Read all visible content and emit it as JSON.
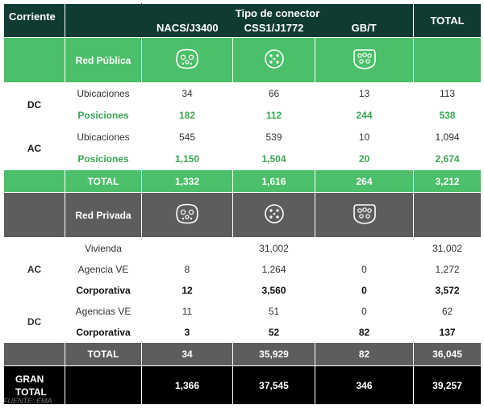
{
  "header": {
    "corriente": "Corriente",
    "tipo_conector": "Tipo de conector",
    "nacs": "NACS/J3400",
    "ccs1": "CSS1/J1772",
    "gbt": "GB/T",
    "total": "TOTAL"
  },
  "public": {
    "title": "Red Pública",
    "dc_label": "DC",
    "ac_label": "AC",
    "dc_ubic": {
      "label": "Ubicaciones",
      "nacs": "34",
      "ccs1": "66",
      "gbt": "13",
      "total": "113"
    },
    "dc_pos": {
      "label": "Posiciones",
      "nacs": "182",
      "ccs1": "112",
      "gbt": "244",
      "total": "538"
    },
    "ac_ubic": {
      "label": "Ubicaciones",
      "nacs": "545",
      "ccs1": "539",
      "gbt": "10",
      "total": "1,094"
    },
    "ac_pos": {
      "label": "Posiciones",
      "nacs": "1,150",
      "ccs1": "1,504",
      "gbt": "20",
      "total": "2,674"
    },
    "total": {
      "label": "TOTAL",
      "nacs": "1,332",
      "ccs1": "1,616",
      "gbt": "264",
      "total": "3,212"
    }
  },
  "private": {
    "title": "Red Privada",
    "ac_label": "AC",
    "dc_label": "DC",
    "vivienda": {
      "label": "Vivienda",
      "nacs": "",
      "ccs1": "31,002",
      "gbt": "",
      "total": "31,002"
    },
    "agencia_ve": {
      "label": "Agencia VE",
      "nacs": "8",
      "ccs1": "1,264",
      "gbt": "0",
      "total": "1,272"
    },
    "ac_corp": {
      "label": "Corporativa",
      "nacs": "12",
      "ccs1": "3,560",
      "gbt": "0",
      "total": "3,572"
    },
    "agencias_ve": {
      "label": "Agencias VE",
      "nacs": "11",
      "ccs1": "51",
      "gbt": "0",
      "total": "62"
    },
    "dc_corp": {
      "label": "Corporativa",
      "nacs": "3",
      "ccs1": "52",
      "gbt": "82",
      "total": "137"
    },
    "total": {
      "label": "TOTAL",
      "nacs": "34",
      "ccs1": "35,929",
      "gbt": "82",
      "total": "36,045"
    }
  },
  "grand": {
    "label_1": "GRAN",
    "label_2": "TOTAL",
    "nacs": "1,366",
    "ccs1": "37,545",
    "gbt": "346",
    "total": "39,257"
  },
  "source": "FUENTE: EMA",
  "icons": {
    "nacs": "nacs-plug-icon",
    "ccs1": "ccs1-plug-icon",
    "gbt": "gbt-plug-icon"
  }
}
